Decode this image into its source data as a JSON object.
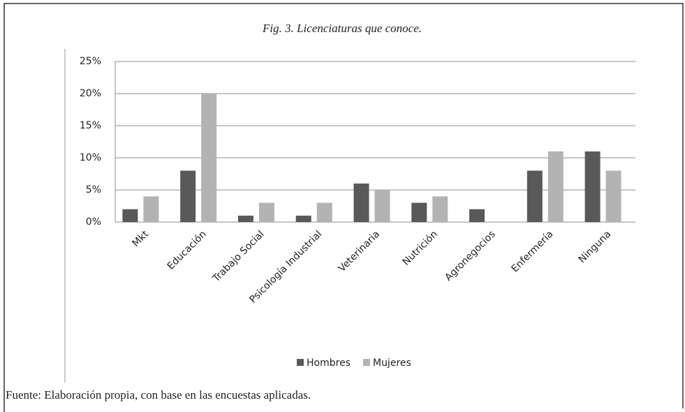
{
  "chart_data": {
    "type": "bar",
    "title": "Fig. 3. Licenciaturas que conoce.",
    "categories": [
      "Mkt",
      "Educación",
      "Trabajo Social",
      "Psicología Industrial",
      "Veterinaria",
      "Nutrición",
      "Agronegocios",
      "Enfermería",
      "Ninguna"
    ],
    "series": [
      {
        "name": "Hombres",
        "color": "#595959",
        "values": [
          2,
          8,
          1,
          1,
          6,
          3,
          2,
          8,
          11
        ]
      },
      {
        "name": "Mujeres",
        "color": "#b3b3b3",
        "values": [
          4,
          20,
          3,
          3,
          5,
          4,
          0,
          11,
          8
        ]
      }
    ],
    "ylim": [
      0,
      25
    ],
    "yticks": [
      {
        "value": 0,
        "label": "0%"
      },
      {
        "value": 5,
        "label": "5%"
      },
      {
        "value": 10,
        "label": "10%"
      },
      {
        "value": 15,
        "label": "15%"
      },
      {
        "value": 20,
        "label": "20%"
      },
      {
        "value": 25,
        "label": "25%"
      }
    ],
    "grid": true,
    "legend": "bottom",
    "source": "Fuente: Elaboración propia, con base en las encuestas aplicadas."
  }
}
